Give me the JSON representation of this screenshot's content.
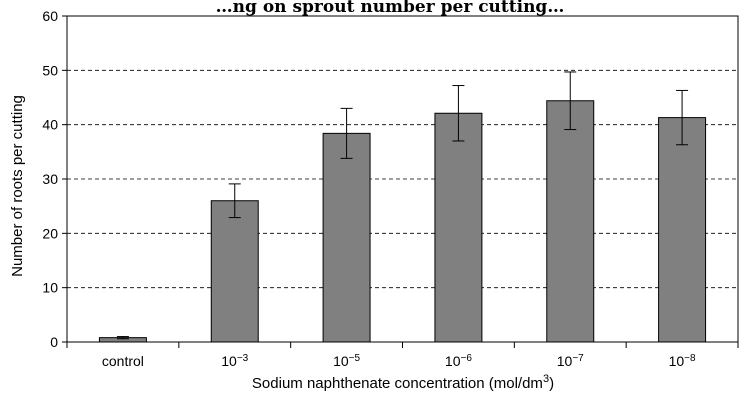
{
  "chart_data": {
    "type": "bar",
    "title": "…ng on sprout number per cutting…",
    "xlabel": "Sodium naphthenate concentration (mol/dm",
    "xlabel_sup": "3",
    "xlabel_end": ")",
    "ylabel": "Number of roots per cutting",
    "categories": [
      {
        "base": "control",
        "exp": ""
      },
      {
        "base": "10",
        "exp": "−3"
      },
      {
        "base": "10",
        "exp": "−5"
      },
      {
        "base": "10",
        "exp": "−6"
      },
      {
        "base": "10",
        "exp": "−7"
      },
      {
        "base": "10",
        "exp": "−8"
      }
    ],
    "values": [
      0.8,
      26.0,
      38.4,
      42.1,
      44.4,
      41.3
    ],
    "error": [
      0.2,
      3.1,
      4.6,
      5.1,
      5.3,
      5.0
    ],
    "ylim": [
      0,
      60
    ],
    "yticks": [
      0,
      10,
      20,
      30,
      40,
      50,
      60
    ],
    "bar_color": "#808080",
    "gridlines": "dashed, horizontal",
    "legend": "none"
  }
}
